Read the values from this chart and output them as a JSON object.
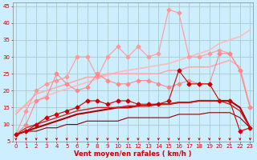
{
  "xlabel": "Vent moyen/en rafales ( km/h )",
  "bg_color": "#cceeff",
  "grid_color": "#aacccc",
  "x": [
    0,
    1,
    2,
    3,
    4,
    5,
    6,
    7,
    8,
    9,
    10,
    11,
    12,
    13,
    14,
    15,
    16,
    17,
    18,
    19,
    20,
    21,
    22,
    23
  ],
  "lines": [
    {
      "y": [
        7,
        14,
        20,
        22,
        23,
        24,
        30,
        30,
        24,
        30,
        33,
        30,
        33,
        30,
        31,
        44,
        43,
        30,
        30,
        31,
        32,
        31,
        26,
        15
      ],
      "color": "#ff9999",
      "marker": "D",
      "lw": 0.8,
      "ms": 2.5
    },
    {
      "y": [
        14,
        15.5,
        17,
        18.5,
        19.5,
        20.5,
        21.5,
        22.5,
        23.5,
        24.5,
        25.5,
        26,
        26.5,
        27,
        27.5,
        28,
        29,
        30,
        31,
        32,
        34,
        35,
        36,
        38
      ],
      "color": "#ffbbbb",
      "marker": null,
      "lw": 1.2,
      "ms": 0
    },
    {
      "y": [
        7,
        10,
        17,
        18,
        25,
        22,
        20,
        21,
        25,
        23,
        22,
        22,
        23,
        23,
        22,
        21,
        22,
        23,
        22,
        22,
        31,
        31,
        26,
        15
      ],
      "color": "#ff8888",
      "marker": "D",
      "lw": 0.8,
      "ms": 2.5
    },
    {
      "y": [
        13,
        16,
        19,
        20,
        21,
        22,
        23,
        24,
        24,
        25,
        25,
        25,
        25,
        25,
        25,
        26,
        26,
        27,
        27,
        27,
        28,
        29,
        27,
        15
      ],
      "color": "#ffaaaa",
      "marker": null,
      "lw": 1.2,
      "ms": 0
    },
    {
      "y": [
        7,
        8,
        10,
        12,
        13,
        14,
        15,
        17,
        17,
        16,
        17,
        17,
        16,
        16,
        16,
        17,
        26,
        22,
        22,
        22,
        17,
        17,
        8,
        9
      ],
      "color": "#cc0000",
      "marker": "D",
      "lw": 0.8,
      "ms": 2.5
    },
    {
      "y": [
        7,
        8,
        9,
        10,
        11,
        12,
        13,
        13.5,
        14,
        14.5,
        15,
        15,
        15.5,
        15.5,
        16,
        16,
        16.5,
        16.5,
        17,
        17,
        17,
        17,
        15,
        9
      ],
      "color": "#aa0000",
      "marker": null,
      "lw": 1.5,
      "ms": 0
    },
    {
      "y": [
        7,
        9,
        10,
        11,
        12,
        13,
        14,
        14.5,
        15,
        15,
        15,
        15.5,
        15.5,
        15.5,
        16,
        16,
        16.5,
        16.5,
        17,
        17,
        17,
        16,
        14,
        9
      ],
      "color": "#cc2222",
      "marker": null,
      "lw": 1.0,
      "ms": 0
    },
    {
      "y": [
        7,
        8,
        8,
        9,
        9,
        10,
        10,
        11,
        11,
        11,
        11,
        12,
        12,
        12,
        12,
        12,
        13,
        13,
        13,
        13.5,
        13.5,
        13.5,
        12,
        9
      ],
      "color": "#880000",
      "marker": null,
      "lw": 0.8,
      "ms": 0
    }
  ],
  "ylim": [
    5,
    46
  ],
  "xlim": [
    -0.3,
    23.3
  ],
  "yticks": [
    5,
    10,
    15,
    20,
    25,
    30,
    35,
    40,
    45
  ],
  "xticks": [
    0,
    1,
    2,
    3,
    4,
    5,
    6,
    7,
    8,
    9,
    10,
    11,
    12,
    13,
    14,
    15,
    16,
    17,
    18,
    19,
    20,
    21,
    22,
    23
  ],
  "arrow_color": "#cc0000",
  "tick_color": "#cc0000",
  "label_color": "#cc0000",
  "tick_fontsize": 5.0,
  "xlabel_fontsize": 6.0
}
